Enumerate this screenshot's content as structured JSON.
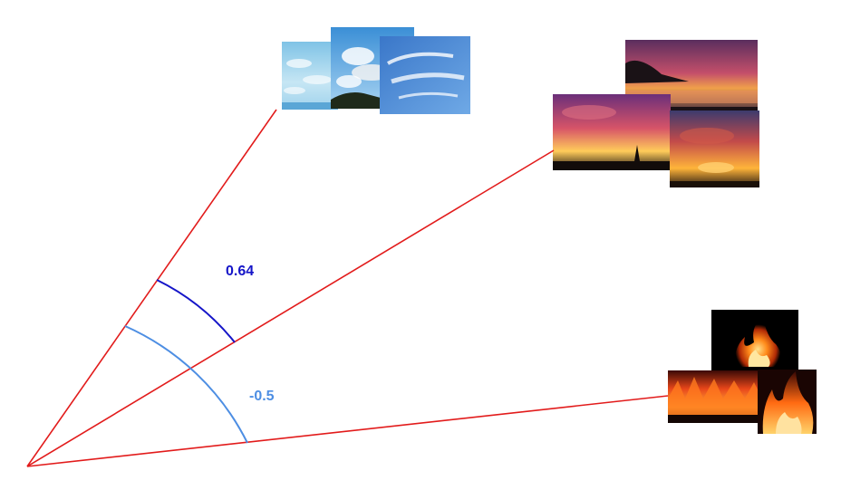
{
  "angles": [
    {
      "label": "0.64",
      "color": "#1515c8"
    },
    {
      "label": "-0.5",
      "color": "#4d8ee3"
    }
  ],
  "rays": [
    {
      "group": "clouds",
      "color": "#e21b1b"
    },
    {
      "group": "sunsets",
      "color": "#e21b1b"
    },
    {
      "group": "fire",
      "color": "#e21b1b"
    }
  ],
  "image_groups": [
    {
      "name": "clouds",
      "count": 3
    },
    {
      "name": "sunsets",
      "count": 3
    },
    {
      "name": "fire",
      "count": 3
    }
  ]
}
